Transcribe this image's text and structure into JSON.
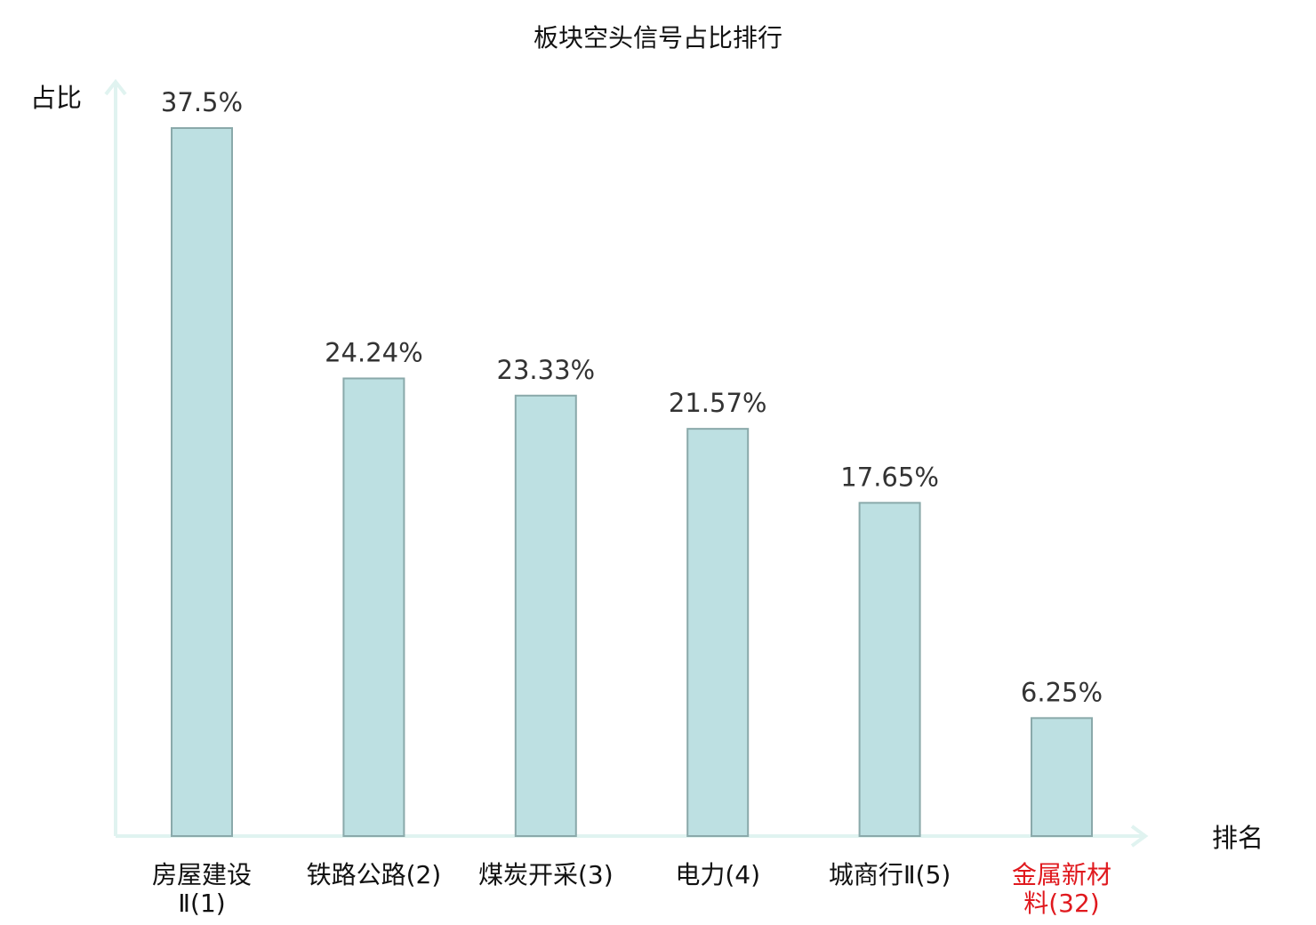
{
  "chart_data": {
    "type": "bar",
    "title": "板块空头信号占比排行",
    "ylabel": "占比",
    "xlabel": "排名",
    "ylim": [
      0,
      40
    ],
    "grid": false,
    "value_suffix": "%",
    "categories": [
      {
        "lines": [
          "房屋建设",
          "Ⅱ(1)"
        ]
      },
      {
        "lines": [
          "铁路公路(2)"
        ]
      },
      {
        "lines": [
          "煤炭开采(3)"
        ]
      },
      {
        "lines": [
          "电力(4)"
        ]
      },
      {
        "lines": [
          "城商行Ⅱ(5)"
        ]
      },
      {
        "lines": [
          "金属新材",
          "料(32)"
        ]
      }
    ],
    "values": [
      37.5,
      24.24,
      23.33,
      21.57,
      17.65,
      6.25
    ],
    "value_labels": [
      "37.5%",
      "24.24%",
      "23.33%",
      "21.57%",
      "17.65%",
      "6.25%"
    ],
    "highlight_index": 5,
    "colors": {
      "bar_fill": "#bde0e2",
      "bar_stroke": "#8aa9aa",
      "axis": "#e0f3f0",
      "highlight": "#e0191e"
    }
  }
}
